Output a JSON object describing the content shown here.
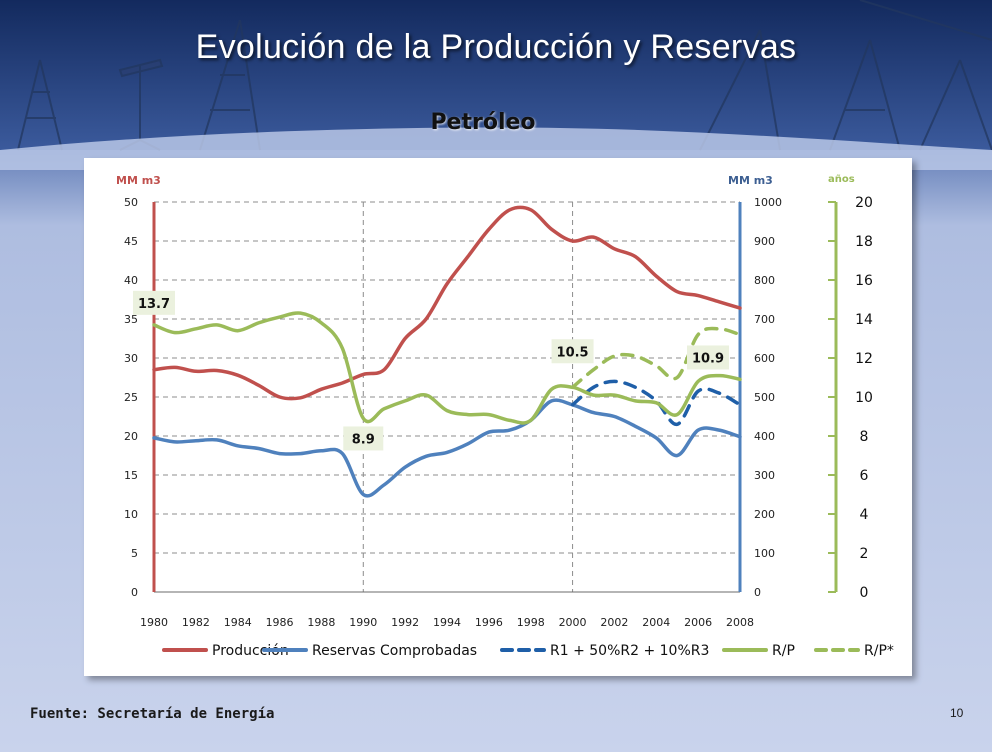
{
  "slide": {
    "title": "Evolución de la Producción y Reservas",
    "subtitle": "Petróleo",
    "source": "Fuente: Secretaría de Energía",
    "page_number": "10",
    "colors": {
      "background_top": "#1f3a7a",
      "background_bottom": "#c7d2ec",
      "produccion": "#c0504d",
      "reservas": "#4f81bd",
      "r_estimate": "#1f5fa8",
      "rp": "#9bbb59",
      "label_box": "#ebf1de"
    }
  },
  "chart_data": {
    "type": "line",
    "x": [
      1980,
      1981,
      1982,
      1983,
      1984,
      1985,
      1986,
      1987,
      1988,
      1989,
      1990,
      1991,
      1992,
      1993,
      1994,
      1995,
      1996,
      1997,
      1998,
      1999,
      2000,
      2001,
      2002,
      2003,
      2004,
      2005,
      2006,
      2007,
      2008
    ],
    "x_ticks": [
      "1980",
      "1982",
      "1984",
      "1986",
      "1988",
      "1990",
      "1992",
      "1994",
      "1996",
      "1998",
      "2000",
      "2002",
      "2004",
      "2006",
      "2008"
    ],
    "left_axis": {
      "unit": "MM m3",
      "range": [
        0,
        50
      ],
      "ticks": [
        "0",
        "5",
        "10",
        "15",
        "20",
        "25",
        "30",
        "35",
        "40",
        "45",
        "50"
      ]
    },
    "right_axis": {
      "unit": "MM m3",
      "range": [
        0,
        1000
      ],
      "ticks": [
        "0",
        "100",
        "200",
        "300",
        "400",
        "500",
        "600",
        "700",
        "800",
        "900",
        "1000"
      ]
    },
    "years_axis": {
      "unit": "años",
      "range": [
        0,
        20
      ],
      "ticks": [
        "0",
        "2",
        "4",
        "6",
        "8",
        "10",
        "12",
        "14",
        "16",
        "18",
        "20"
      ]
    },
    "vertical_gridlines_at": [
      1990,
      2000
    ],
    "series": [
      {
        "name": "Producción",
        "axis": "left",
        "style": "solid",
        "values": [
          28.5,
          28.8,
          28.3,
          28.4,
          27.8,
          26.5,
          25.0,
          24.9,
          26.0,
          26.8,
          27.9,
          28.5,
          32.5,
          35.0,
          39.5,
          43.0,
          46.5,
          49.0,
          49.0,
          46.5,
          45.0,
          45.5,
          44.0,
          43.0,
          40.5,
          38.5,
          38.0,
          37.2,
          36.4
        ]
      },
      {
        "name": "Reservas Comprobadas",
        "axis": "right",
        "style": "solid",
        "values": [
          395,
          385,
          388,
          390,
          375,
          368,
          355,
          355,
          362,
          355,
          250,
          275,
          320,
          348,
          358,
          380,
          410,
          415,
          440,
          490,
          480,
          460,
          450,
          425,
          395,
          350,
          415,
          415,
          398
        ]
      },
      {
        "name": "R1 + 50%R2 + 10%R3",
        "axis": "right",
        "style": "dashed",
        "x": [
          2000,
          2001,
          2002,
          2003,
          2004,
          2005,
          2006,
          2007,
          2008
        ],
        "values": [
          480,
          525,
          540,
          525,
          490,
          430,
          515,
          510,
          480
        ]
      },
      {
        "name": "R/P",
        "axis": "years",
        "style": "solid",
        "values": [
          13.7,
          13.3,
          13.5,
          13.7,
          13.4,
          13.8,
          14.1,
          14.3,
          13.8,
          12.5,
          8.9,
          9.4,
          9.8,
          10.1,
          9.3,
          9.1,
          9.1,
          8.8,
          8.8,
          10.4,
          10.5,
          10.1,
          10.1,
          9.8,
          9.7,
          9.1,
          10.8,
          11.1,
          10.9
        ]
      },
      {
        "name": "R/P*",
        "axis": "years",
        "style": "dashed",
        "x": [
          2000,
          2001,
          2002,
          2003,
          2004,
          2005,
          2006,
          2007,
          2008
        ],
        "values": [
          10.5,
          11.4,
          12.1,
          12.1,
          11.6,
          11.0,
          13.2,
          13.5,
          13.2
        ]
      }
    ],
    "annotations": [
      {
        "text": "13.7",
        "x": 1980,
        "y": 13.7,
        "axis": "years"
      },
      {
        "text": "8.9",
        "x": 1990,
        "y": 8.9,
        "axis": "years"
      },
      {
        "text": "10.5",
        "x": 2000,
        "y": 10.5,
        "axis": "years"
      },
      {
        "text": "10.9",
        "x": 2008,
        "y": 10.9,
        "axis": "years"
      }
    ],
    "legend": [
      "Producción",
      "Reservas Comprobadas",
      "R1 + 50%R2 + 10%R3",
      "R/P",
      "R/P*"
    ],
    "legend_position": "bottom",
    "grid": true
  }
}
